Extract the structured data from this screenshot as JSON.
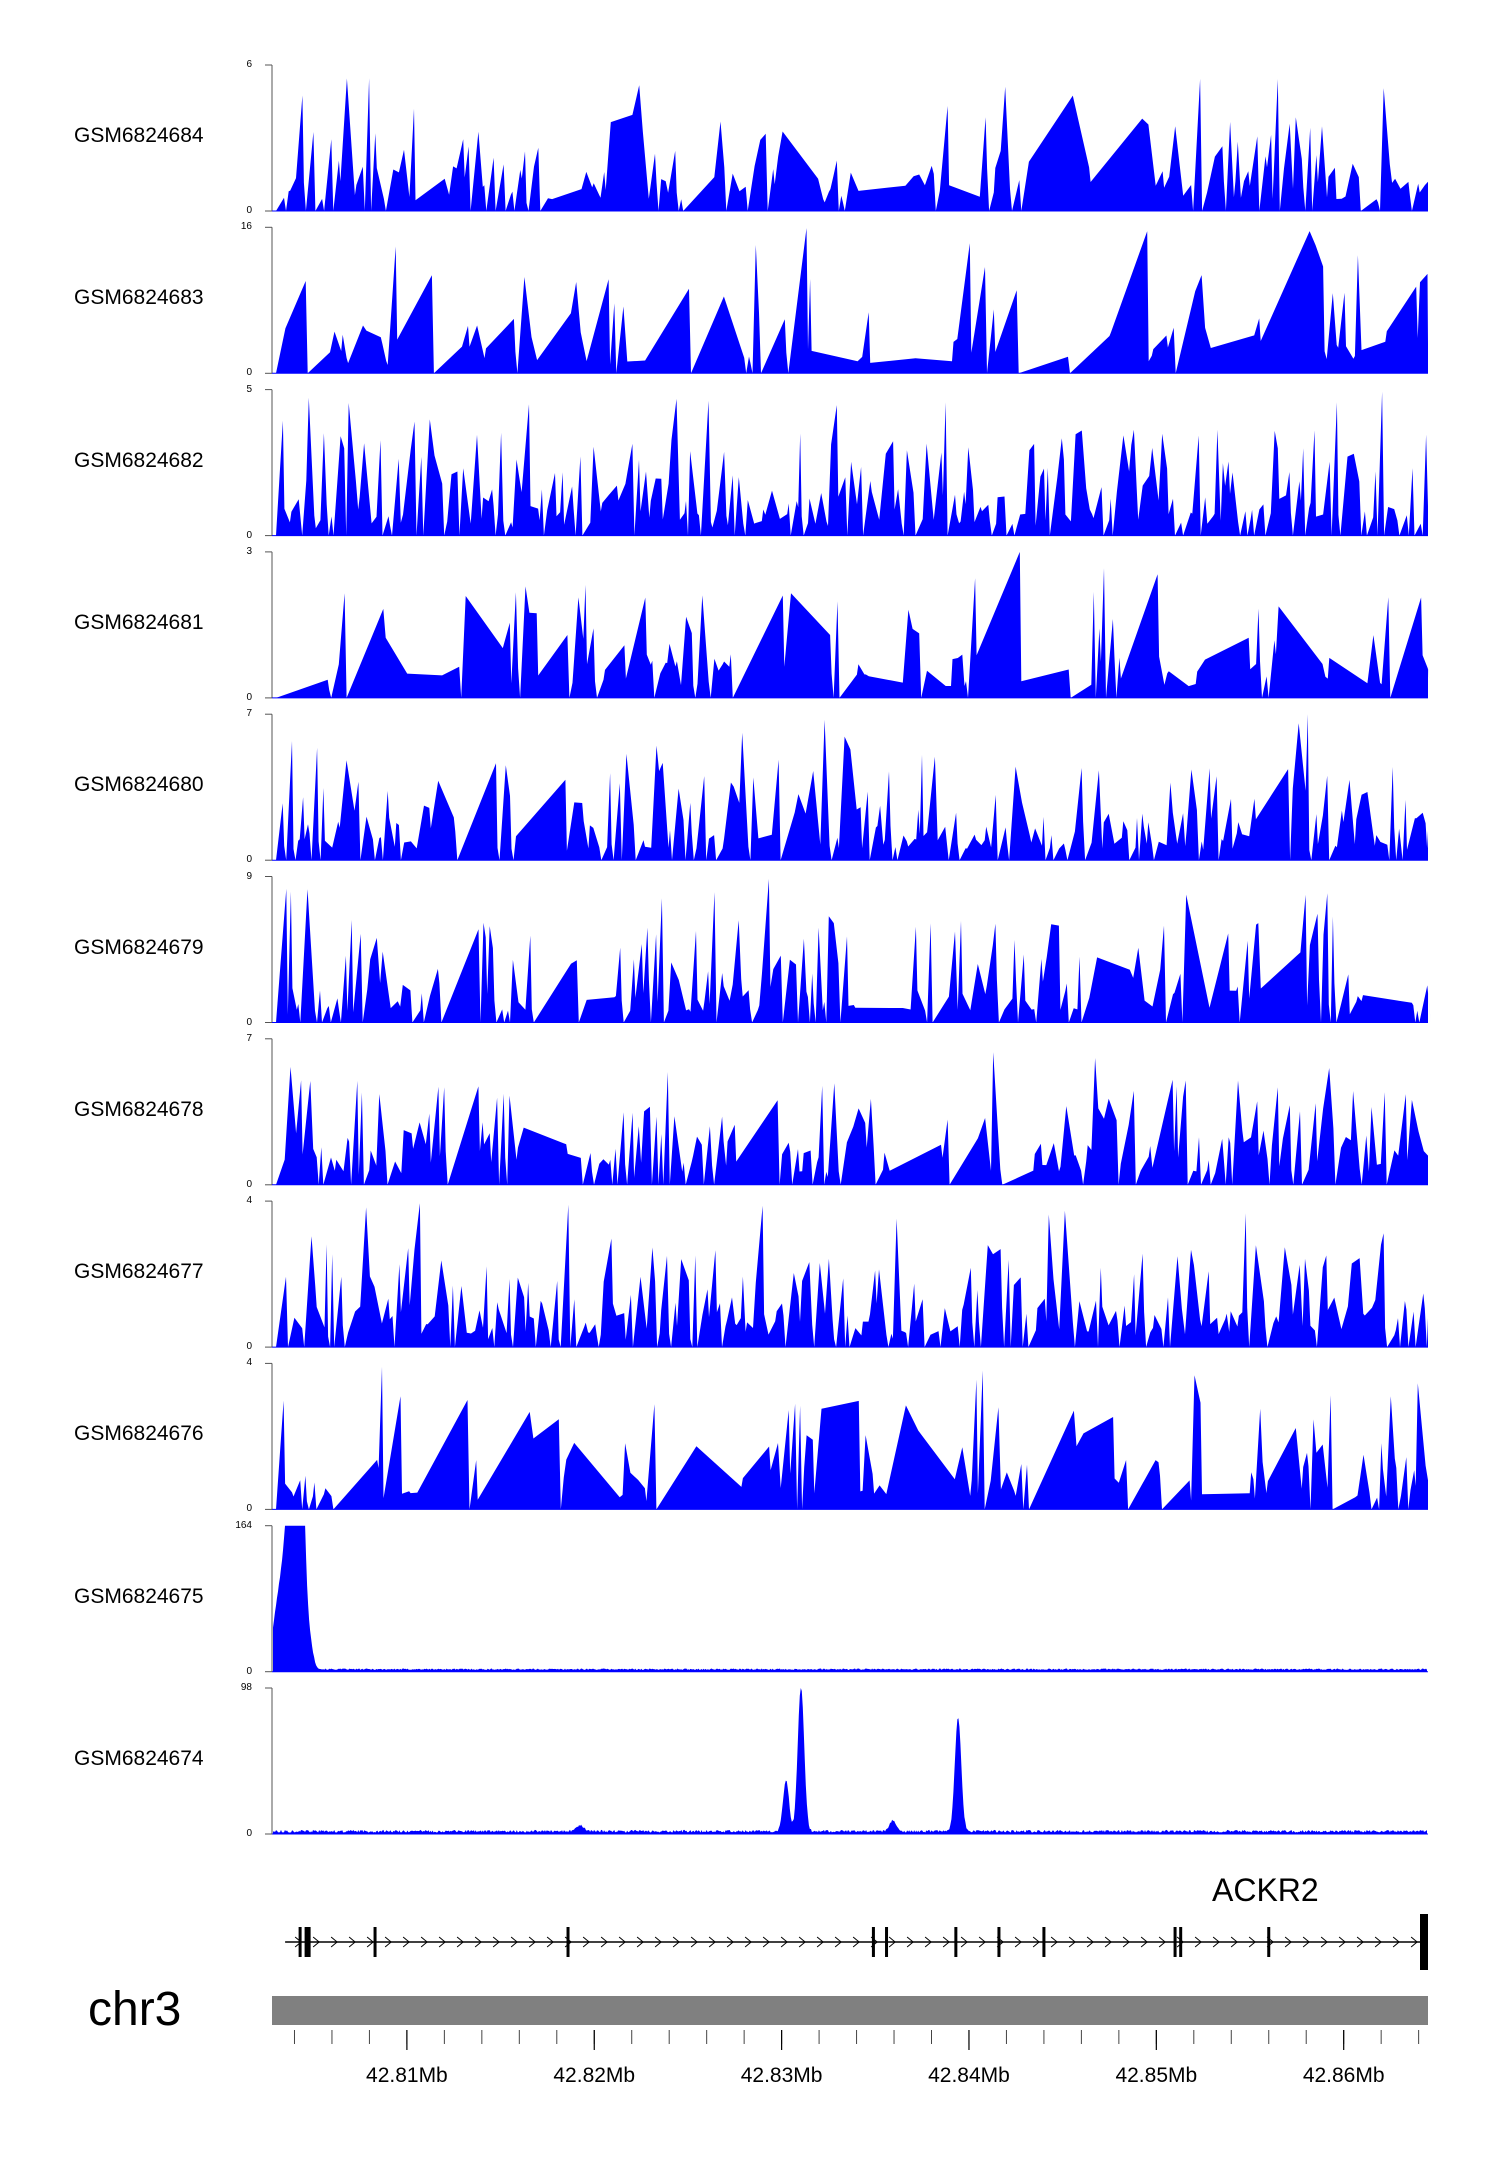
{
  "tracks": [
    {
      "name": "GSM6824684",
      "ymax": "6",
      "ymin": "0",
      "profile": "noisy",
      "seed": 11,
      "dens": 0.9
    },
    {
      "name": "GSM6824683",
      "ymax": "16",
      "ymin": "0",
      "profile": "noisy",
      "seed": 23,
      "dens": 0.55
    },
    {
      "name": "GSM6824682",
      "ymax": "5",
      "ymin": "0",
      "profile": "noisy",
      "seed": 37,
      "dens": 1.0
    },
    {
      "name": "GSM6824681",
      "ymax": "3",
      "ymin": "0",
      "profile": "noisy",
      "seed": 41,
      "dens": 0.75
    },
    {
      "name": "GSM6824680",
      "ymax": "7",
      "ymin": "0",
      "profile": "noisy",
      "seed": 53,
      "dens": 0.95
    },
    {
      "name": "GSM6824679",
      "ymax": "9",
      "ymin": "0",
      "profile": "noisy",
      "seed": 67,
      "dens": 0.9
    },
    {
      "name": "GSM6824678",
      "ymax": "7",
      "ymin": "0",
      "profile": "noisy",
      "seed": 71,
      "dens": 0.9
    },
    {
      "name": "GSM6824677",
      "ymax": "4",
      "ymin": "0",
      "profile": "noisy",
      "seed": 83,
      "dens": 1.0
    },
    {
      "name": "GSM6824676",
      "ymax": "4",
      "ymin": "0",
      "profile": "noisy",
      "seed": 97,
      "dens": 0.85
    },
    {
      "name": "GSM6824675",
      "ymax": "164",
      "ymin": "0",
      "profile": "peak_left",
      "seed": 101,
      "dens": 1.0
    },
    {
      "name": "GSM6824674",
      "ymax": "98",
      "ymin": "0",
      "profile": "two_peaks",
      "seed": 113,
      "dens": 1.0
    }
  ],
  "track_color": "#0000ff",
  "gene": {
    "name": "ACKR2",
    "strand": "+",
    "start_mb": 42.8035,
    "end_mb": 42.8645,
    "exons_mb": [
      42.8043,
      42.8047,
      42.8083,
      42.8186,
      42.8349,
      42.8356,
      42.8393,
      42.8416,
      42.844,
      42.851,
      42.8513,
      42.856,
      42.8645
    ]
  },
  "chromosome": {
    "name": "chr3",
    "color": "#808080"
  },
  "axis": {
    "start_mb": 42.8028,
    "end_mb": 42.8645,
    "ticks": [
      {
        "pos": 42.81,
        "label": "42.81Mb"
      },
      {
        "pos": 42.82,
        "label": "42.82Mb"
      },
      {
        "pos": 42.83,
        "label": "42.83Mb"
      },
      {
        "pos": 42.84,
        "label": "42.84Mb"
      },
      {
        "pos": 42.85,
        "label": "42.85Mb"
      },
      {
        "pos": 42.86,
        "label": "42.86Mb"
      }
    ]
  }
}
